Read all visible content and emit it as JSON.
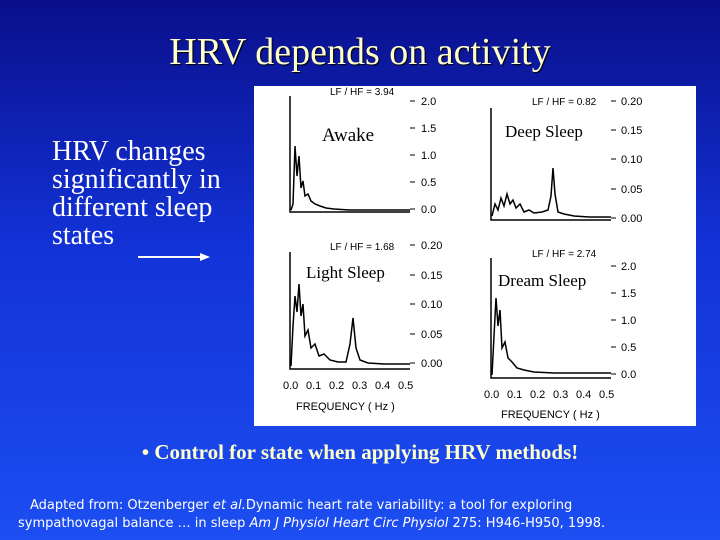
{
  "title": "HRV depends on activity",
  "left_text": [
    "HRV changes",
    "significantly in",
    "different sleep",
    "states"
  ],
  "panels": {
    "awake": {
      "label": "Awake",
      "ratio": "LF / HF = 3.94",
      "ticks": [
        "2.0",
        "1.5",
        "1.0",
        "0.5",
        "0.0"
      ]
    },
    "deep": {
      "label": "Deep Sleep",
      "ratio": "LF / HF = 0.82",
      "ticks": [
        "0.20",
        "0.15",
        "0.10",
        "0.05",
        "0.00"
      ]
    },
    "light": {
      "label": "Light Sleep",
      "ratio": "LF / HF = 1.68",
      "ticks": [
        "0.20",
        "0.15",
        "0.10",
        "0.05",
        "0.00"
      ]
    },
    "dream": {
      "label": "Dream Sleep",
      "ratio": "LF / HF = 2.74",
      "ticks": [
        "2.0",
        "1.5",
        "1.0",
        "0.5",
        "0.0"
      ]
    }
  },
  "x_ticks": [
    "0.0",
    "0.1",
    "0.2",
    "0.3",
    "0.4",
    "0.5"
  ],
  "x_label": "FREQUENCY ( Hz )",
  "bullet": "• Control for state when applying HRV methods!",
  "reference": {
    "prefix": "Adapted from:",
    "authors": "Otzenberger",
    "etal": "et al.",
    "paper": "Dynamic heart rate variability: a tool for exploring",
    "line2": "sympathovagal balance … in sleep",
    "journal": "Am J Physiol Heart Circ Physiol",
    "cite": "275: H946-H950, 1998."
  },
  "colors": {
    "background": "#1232d6",
    "title": "#ffffcc",
    "panel": "#ffffff"
  }
}
